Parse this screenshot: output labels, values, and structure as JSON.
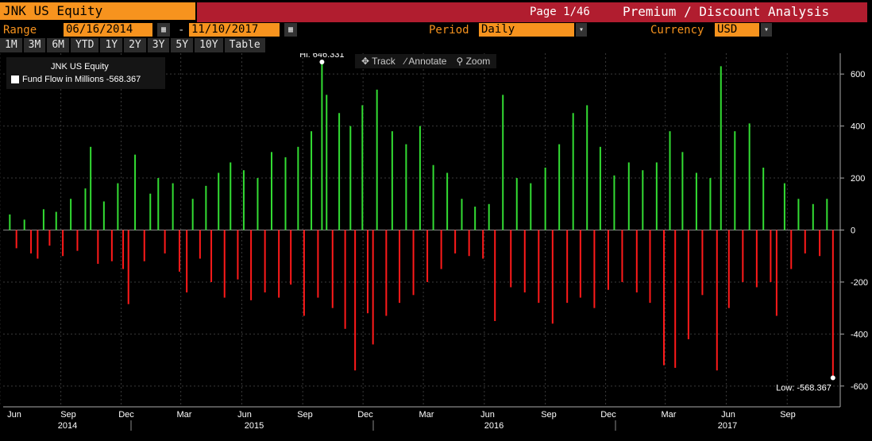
{
  "header": {
    "ticker": "JNK US Equity",
    "page": "Page 1/46",
    "analysis_title": "Premium / Discount Analysis"
  },
  "controls": {
    "range_label": "Range",
    "start_date": "06/16/2014",
    "end_date": "11/10/2017",
    "period_label": "Period",
    "period_value": "Daily",
    "currency_label": "Currency",
    "currency_value": "USD"
  },
  "tabs": [
    "1M",
    "3M",
    "6M",
    "YTD",
    "1Y",
    "2Y",
    "3Y",
    "5Y",
    "10Y",
    "Table"
  ],
  "toolbar": {
    "track": "Track",
    "annotate": "Annotate",
    "zoom": "Zoom"
  },
  "legend": {
    "title": "JNK US Equity",
    "series_label": "Fund Flow in Millions -568.367"
  },
  "colors": {
    "positive": "#33dd33",
    "negative": "#ff1a1a",
    "accent": "#f7931e",
    "header_red": "#b11d2f"
  },
  "chart_data": {
    "type": "bar",
    "series_name": "Fund Flow in Millions",
    "x_start": "2014-06-16",
    "x_end": "2017-11-10",
    "ylim": [
      -680,
      680
    ],
    "yticks": [
      600,
      400,
      200,
      0,
      -200,
      -400,
      -600
    ],
    "x_month_labels": [
      "Jun",
      "Sep",
      "Dec",
      "Mar",
      "Jun",
      "Sep",
      "Dec",
      "Mar",
      "Jun",
      "Sep",
      "Dec",
      "Mar",
      "Jun",
      "Sep"
    ],
    "x_year_labels": [
      "2014",
      "2015",
      "2016",
      "2017"
    ],
    "annotations": {
      "high_label": "Hi: 646.331",
      "high_value": 646.331,
      "high_date": "2015-09-30",
      "low_label": "Low: -568.367",
      "low_value": -568.367,
      "low_date": "2017-11-09"
    },
    "values": [
      {
        "d": "2014-06-16",
        "v": 60
      },
      {
        "d": "2014-06-26",
        "v": -70
      },
      {
        "d": "2014-07-08",
        "v": 40
      },
      {
        "d": "2014-07-18",
        "v": -90
      },
      {
        "d": "2014-07-28",
        "v": -110
      },
      {
        "d": "2014-08-06",
        "v": 80
      },
      {
        "d": "2014-08-15",
        "v": -60
      },
      {
        "d": "2014-08-25",
        "v": 70
      },
      {
        "d": "2014-09-04",
        "v": -100
      },
      {
        "d": "2014-09-16",
        "v": 120
      },
      {
        "d": "2014-09-26",
        "v": -80
      },
      {
        "d": "2014-10-08",
        "v": 160
      },
      {
        "d": "2014-10-16",
        "v": 320
      },
      {
        "d": "2014-10-27",
        "v": -130
      },
      {
        "d": "2014-11-05",
        "v": 110
      },
      {
        "d": "2014-11-17",
        "v": -120
      },
      {
        "d": "2014-11-26",
        "v": 180
      },
      {
        "d": "2014-12-04",
        "v": -150
      },
      {
        "d": "2014-12-12",
        "v": -285
      },
      {
        "d": "2014-12-22",
        "v": 290
      },
      {
        "d": "2015-01-05",
        "v": -120
      },
      {
        "d": "2015-01-14",
        "v": 140
      },
      {
        "d": "2015-01-26",
        "v": 200
      },
      {
        "d": "2015-02-05",
        "v": -90
      },
      {
        "d": "2015-02-17",
        "v": 180
      },
      {
        "d": "2015-02-27",
        "v": -160
      },
      {
        "d": "2015-03-10",
        "v": -240
      },
      {
        "d": "2015-03-19",
        "v": 120
      },
      {
        "d": "2015-03-30",
        "v": -110
      },
      {
        "d": "2015-04-08",
        "v": 170
      },
      {
        "d": "2015-04-16",
        "v": -200
      },
      {
        "d": "2015-04-27",
        "v": 220
      },
      {
        "d": "2015-05-06",
        "v": -260
      },
      {
        "d": "2015-05-15",
        "v": 260
      },
      {
        "d": "2015-05-26",
        "v": -190
      },
      {
        "d": "2015-06-04",
        "v": 230
      },
      {
        "d": "2015-06-15",
        "v": -270
      },
      {
        "d": "2015-06-25",
        "v": 200
      },
      {
        "d": "2015-07-06",
        "v": -240
      },
      {
        "d": "2015-07-16",
        "v": 300
      },
      {
        "d": "2015-07-27",
        "v": -260
      },
      {
        "d": "2015-08-06",
        "v": 280
      },
      {
        "d": "2015-08-14",
        "v": -210
      },
      {
        "d": "2015-08-25",
        "v": 320
      },
      {
        "d": "2015-09-03",
        "v": -330
      },
      {
        "d": "2015-09-14",
        "v": 380
      },
      {
        "d": "2015-09-24",
        "v": -260
      },
      {
        "d": "2015-09-30",
        "v": 646.331
      },
      {
        "d": "2015-10-07",
        "v": 520
      },
      {
        "d": "2015-10-16",
        "v": -300
      },
      {
        "d": "2015-10-26",
        "v": 450
      },
      {
        "d": "2015-11-04",
        "v": -380
      },
      {
        "d": "2015-11-12",
        "v": 400
      },
      {
        "d": "2015-11-19",
        "v": -540
      },
      {
        "d": "2015-11-30",
        "v": 480
      },
      {
        "d": "2015-12-08",
        "v": -320
      },
      {
        "d": "2015-12-16",
        "v": -440
      },
      {
        "d": "2015-12-22",
        "v": 540
      },
      {
        "d": "2016-01-05",
        "v": -330
      },
      {
        "d": "2016-01-14",
        "v": 380
      },
      {
        "d": "2016-01-25",
        "v": -280
      },
      {
        "d": "2016-02-04",
        "v": 330
      },
      {
        "d": "2016-02-15",
        "v": -250
      },
      {
        "d": "2016-02-25",
        "v": 400
      },
      {
        "d": "2016-03-07",
        "v": -200
      },
      {
        "d": "2016-03-16",
        "v": 250
      },
      {
        "d": "2016-03-28",
        "v": -150
      },
      {
        "d": "2016-04-06",
        "v": 220
      },
      {
        "d": "2016-04-18",
        "v": -90
      },
      {
        "d": "2016-04-28",
        "v": 120
      },
      {
        "d": "2016-05-09",
        "v": -100
      },
      {
        "d": "2016-05-18",
        "v": 90
      },
      {
        "d": "2016-05-30",
        "v": -110
      },
      {
        "d": "2016-06-08",
        "v": 100
      },
      {
        "d": "2016-06-17",
        "v": -350
      },
      {
        "d": "2016-06-29",
        "v": 520
      },
      {
        "d": "2016-07-11",
        "v": -220
      },
      {
        "d": "2016-07-20",
        "v": 200
      },
      {
        "d": "2016-08-01",
        "v": -240
      },
      {
        "d": "2016-08-10",
        "v": 180
      },
      {
        "d": "2016-08-22",
        "v": -280
      },
      {
        "d": "2016-09-01",
        "v": 240
      },
      {
        "d": "2016-09-12",
        "v": -360
      },
      {
        "d": "2016-09-22",
        "v": 330
      },
      {
        "d": "2016-10-04",
        "v": -280
      },
      {
        "d": "2016-10-13",
        "v": 450
      },
      {
        "d": "2016-10-24",
        "v": -260
      },
      {
        "d": "2016-11-03",
        "v": 480
      },
      {
        "d": "2016-11-14",
        "v": -300
      },
      {
        "d": "2016-11-23",
        "v": 320
      },
      {
        "d": "2016-12-05",
        "v": -230
      },
      {
        "d": "2016-12-14",
        "v": 210
      },
      {
        "d": "2016-12-26",
        "v": -200
      },
      {
        "d": "2017-01-05",
        "v": 260
      },
      {
        "d": "2017-01-17",
        "v": -240
      },
      {
        "d": "2017-01-26",
        "v": 230
      },
      {
        "d": "2017-02-06",
        "v": -280
      },
      {
        "d": "2017-02-16",
        "v": 260
      },
      {
        "d": "2017-02-27",
        "v": -520
      },
      {
        "d": "2017-03-08",
        "v": 380
      },
      {
        "d": "2017-03-16",
        "v": -530
      },
      {
        "d": "2017-03-27",
        "v": 300
      },
      {
        "d": "2017-04-05",
        "v": -420
      },
      {
        "d": "2017-04-17",
        "v": 220
      },
      {
        "d": "2017-04-26",
        "v": -250
      },
      {
        "d": "2017-05-08",
        "v": 200
      },
      {
        "d": "2017-05-18",
        "v": -540
      },
      {
        "d": "2017-05-24",
        "v": 630
      },
      {
        "d": "2017-06-05",
        "v": -300
      },
      {
        "d": "2017-06-14",
        "v": 380
      },
      {
        "d": "2017-06-26",
        "v": -200
      },
      {
        "d": "2017-07-06",
        "v": 410
      },
      {
        "d": "2017-07-17",
        "v": -220
      },
      {
        "d": "2017-07-27",
        "v": 240
      },
      {
        "d": "2017-08-07",
        "v": -200
      },
      {
        "d": "2017-08-16",
        "v": -330
      },
      {
        "d": "2017-08-28",
        "v": 180
      },
      {
        "d": "2017-09-07",
        "v": -150
      },
      {
        "d": "2017-09-18",
        "v": 120
      },
      {
        "d": "2017-09-28",
        "v": -90
      },
      {
        "d": "2017-10-10",
        "v": 100
      },
      {
        "d": "2017-10-20",
        "v": -100
      },
      {
        "d": "2017-10-31",
        "v": 120
      },
      {
        "d": "2017-11-09",
        "v": -568.367
      }
    ]
  }
}
